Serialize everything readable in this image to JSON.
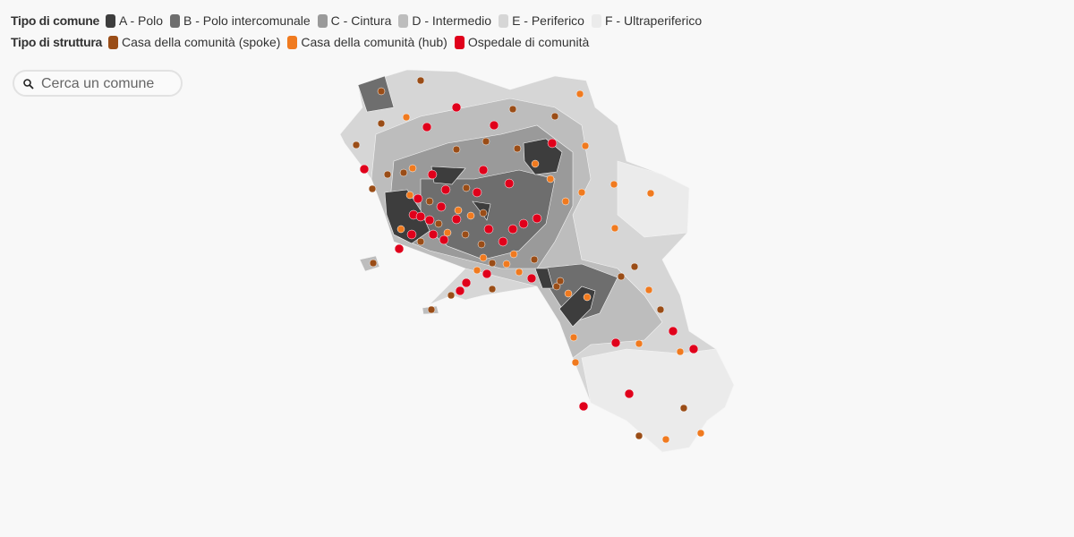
{
  "legend": {
    "municipality_type": {
      "title": "Tipo di comune",
      "items": [
        {
          "label": "A - Polo",
          "color": "#3d3d3d"
        },
        {
          "label": "B - Polo intercomunale",
          "color": "#6e6e6e"
        },
        {
          "label": "C - Cintura",
          "color": "#9a9a9a"
        },
        {
          "label": "D - Intermedio",
          "color": "#bdbdbd"
        },
        {
          "label": "E - Periferico",
          "color": "#d6d6d6"
        },
        {
          "label": "F - Ultraperiferico",
          "color": "#ebebeb"
        }
      ]
    },
    "structure_type": {
      "title": "Tipo di struttura",
      "items": [
        {
          "label": "Casa della comunità (spoke)",
          "color": "#9a4d17"
        },
        {
          "label": "Casa della comunità (hub)",
          "color": "#f07a1f"
        },
        {
          "label": "Ospedale di comunità",
          "color": "#e0001b"
        }
      ]
    }
  },
  "search": {
    "placeholder": "Cerca un comune"
  }
}
